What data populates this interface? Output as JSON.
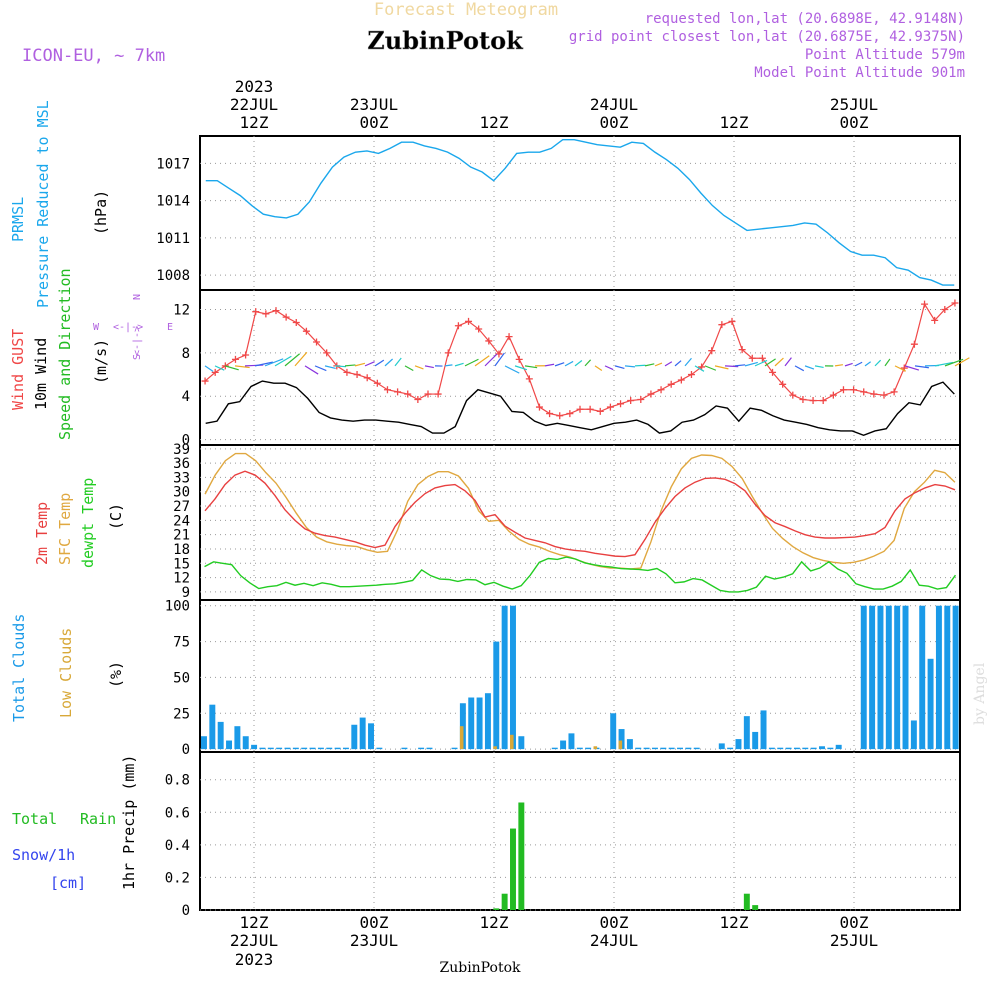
{
  "header": {
    "title_top": "Forecast Meteogram",
    "location": "ZubinPotok",
    "model": "ICON-EU, ~ 7km",
    "requested": "requested lon,lat (20.6898E, 42.9148N)",
    "closest_prefix": "grid point closest lon,lat (20.6875E, 42.9375N)",
    "point_alt": "Point Altitude 579m",
    "model_alt": "Model Point Altitude 901m",
    "footer_location": "ZubinPotok",
    "watermark": "by Angel",
    "compass": {
      "n": "N",
      "e": "E",
      "w": "W",
      "s": "S",
      "arrows": "<-|->"
    }
  },
  "colors": {
    "pressure": "#1aa7ec",
    "gust": "#f04848",
    "wind": "#000000",
    "dir_label": "#22bb22",
    "temp2m": "#e84040",
    "sfc": "#e0a840",
    "dewpt": "#22cc22",
    "total_clouds": "#1a9ae8",
    "low_clouds": "#d8a838",
    "rain": "#22bb22",
    "snow": "#3344ee",
    "title": "#f0d8a0",
    "purple": "#b060e0"
  },
  "time_axis": {
    "top_year": "2023",
    "top_labels": [
      {
        "i": 5,
        "l1": "22JUL",
        "l2": "12Z"
      },
      {
        "i": 17,
        "l1": "23JUL",
        "l2": "00Z"
      },
      {
        "i": 29,
        "l1": "",
        "l2": "12Z"
      },
      {
        "i": 41,
        "l1": "24JUL",
        "l2": "00Z"
      },
      {
        "i": 53,
        "l1": "",
        "l2": "12Z"
      },
      {
        "i": 65,
        "l1": "25JUL",
        "l2": "00Z"
      }
    ],
    "bottom_labels": [
      {
        "i": 5,
        "l1": "12Z",
        "l2": "22JUL",
        "l3": "2023"
      },
      {
        "i": 17,
        "l1": "00Z",
        "l2": "23JUL",
        "l3": ""
      },
      {
        "i": 29,
        "l1": "12Z",
        "l2": "",
        "l3": ""
      },
      {
        "i": 41,
        "l1": "00Z",
        "l2": "24JUL",
        "l3": ""
      },
      {
        "i": 53,
        "l1": "12Z",
        "l2": "",
        "l3": ""
      },
      {
        "i": 65,
        "l1": "00Z",
        "l2": "25JUL",
        "l3": ""
      }
    ]
  },
  "panel_labels": {
    "pressure": [
      "PRMSL",
      "Pressure Reduced to MSL",
      "(hPa)"
    ],
    "wind": [
      "Wind GUST",
      "10m Wind",
      "Speed and Direction",
      "(m/s)"
    ],
    "temp": [
      "2m Temp",
      "SFC Temp",
      "dewpt Temp",
      "(C)"
    ],
    "clouds": [
      "Total Clouds",
      "Low Clouds",
      "(%)"
    ],
    "precip": [
      "Total",
      "Rain",
      "Snow/1h",
      "[cm]",
      "1hr Precip (mm)"
    ]
  },
  "chart_data": [
    {
      "type": "line",
      "title": "PRMSL Pressure Reduced to MSL",
      "ylabel": "(hPa)",
      "y_ticks": [
        1008,
        1011,
        1014,
        1017
      ],
      "ylim": [
        1006.8,
        1019.2
      ],
      "grid": true,
      "series": [
        {
          "name": "PRMSL",
          "values": [
            1015.6,
            1015.6,
            1015.0,
            1014.4,
            1013.6,
            1012.9,
            1012.7,
            1012.6,
            1012.9,
            1013.9,
            1015.4,
            1016.7,
            1017.5,
            1017.9,
            1018.0,
            1017.8,
            1018.2,
            1018.7,
            1018.7,
            1018.4,
            1018.2,
            1017.9,
            1017.4,
            1016.7,
            1016.3,
            1015.6,
            1016.6,
            1017.8,
            1017.9,
            1017.9,
            1018.2,
            1018.9,
            1018.9,
            1018.7,
            1018.5,
            1018.4,
            1018.3,
            1018.7,
            1018.6,
            1017.9,
            1017.3,
            1016.6,
            1015.7,
            1014.6,
            1013.6,
            1012.8,
            1012.2,
            1011.6,
            1011.7,
            1011.8,
            1011.9,
            1012.0,
            1012.2,
            1012.1,
            1011.4,
            1010.6,
            1009.9,
            1009.6,
            1009.6,
            1009.4,
            1008.6,
            1008.4,
            1007.8,
            1007.6,
            1007.2,
            1007.2
          ]
        }
      ]
    },
    {
      "type": "line",
      "title": "Wind GUST / 10m Wind",
      "ylabel": "(m/s)",
      "y_ticks": [
        0,
        4,
        8,
        12
      ],
      "ylim": [
        -0.5,
        13.8
      ],
      "grid": true,
      "series": [
        {
          "name": "Wind GUST",
          "values": [
            5.4,
            6.2,
            6.8,
            7.4,
            7.8,
            11.8,
            11.6,
            11.9,
            11.3,
            10.8,
            10.0,
            9.0,
            8.0,
            6.8,
            6.2,
            6.0,
            5.7,
            5.2,
            4.6,
            4.4,
            4.2,
            3.7,
            4.2,
            4.2,
            8.0,
            10.5,
            10.9,
            10.2,
            9.1,
            7.9,
            9.5,
            7.4,
            5.6,
            3.0,
            2.4,
            2.2,
            2.4,
            2.8,
            2.8,
            2.6,
            3.0,
            3.3,
            3.6,
            3.7,
            4.2,
            4.6,
            5.1,
            5.5,
            6.0,
            6.7,
            8.2,
            10.6,
            10.9,
            8.3,
            7.5,
            7.5,
            6.2,
            5.1,
            4.1,
            3.7,
            3.6,
            3.6,
            4.1,
            4.6,
            4.6,
            4.4,
            4.2,
            4.1,
            4.4,
            6.6,
            8.8,
            12.5,
            11.0,
            12.0,
            12.6
          ]
        },
        {
          "name": "10m Wind",
          "values": [
            1.5,
            1.7,
            3.3,
            3.5,
            4.9,
            5.4,
            5.2,
            5.2,
            4.8,
            3.8,
            2.5,
            2.0,
            1.8,
            1.7,
            1.8,
            1.8,
            1.7,
            1.6,
            1.4,
            1.2,
            0.6,
            0.6,
            1.2,
            3.6,
            4.6,
            4.3,
            4.0,
            2.6,
            2.5,
            1.7,
            1.3,
            1.5,
            1.3,
            1.1,
            0.9,
            1.2,
            1.5,
            1.6,
            1.8,
            1.4,
            0.6,
            0.8,
            1.6,
            1.8,
            2.3,
            3.1,
            2.9,
            1.7,
            2.9,
            2.7,
            2.2,
            1.8,
            1.6,
            1.4,
            1.1,
            0.9,
            0.8,
            0.8,
            0.4,
            0.8,
            1.0,
            2.4,
            3.4,
            3.2,
            4.9,
            5.3,
            4.2
          ]
        }
      ]
    },
    {
      "type": "line",
      "title": "2m Temp / SFC Temp / dewpt Temp",
      "ylabel": "(C)",
      "y_ticks": [
        9,
        12,
        15,
        18,
        21,
        24,
        27,
        30,
        33,
        36,
        39
      ],
      "ylim": [
        7.3,
        39.8
      ],
      "grid": true,
      "series": [
        {
          "name": "2m Temp",
          "values": [
            26.0,
            28.5,
            31.5,
            33.5,
            34.3,
            33.5,
            31.8,
            29.2,
            26.2,
            24.0,
            22.2,
            21.3,
            20.8,
            20.5,
            20.0,
            19.5,
            18.8,
            18.3,
            18.8,
            22.7,
            25.5,
            27.8,
            29.6,
            30.8,
            31.3,
            31.5,
            30.2,
            28.2,
            24.7,
            25.2,
            22.8,
            21.5,
            20.3,
            19.8,
            19.3,
            18.5,
            18.0,
            17.7,
            17.5,
            17.1,
            16.8,
            16.5,
            16.4,
            16.8,
            20.0,
            23.6,
            26.5,
            29.0,
            30.8,
            32.0,
            32.8,
            32.9,
            32.6,
            31.7,
            30.2,
            27.4,
            25.0,
            23.5,
            22.7,
            21.8,
            21.0,
            20.5,
            20.3,
            20.3,
            20.4,
            20.5,
            20.8,
            21.2,
            22.5,
            26.0,
            28.5,
            29.8,
            30.8,
            31.5,
            31.2,
            30.4
          ]
        },
        {
          "name": "SFC Temp",
          "values": [
            29.5,
            33.5,
            36.5,
            38.0,
            38.0,
            36.5,
            34.0,
            31.8,
            28.8,
            25.5,
            22.5,
            20.5,
            19.5,
            19.0,
            18.7,
            18.5,
            17.8,
            17.3,
            17.5,
            22.0,
            28.0,
            31.5,
            33.2,
            34.2,
            34.2,
            33.3,
            30.7,
            26.0,
            23.8,
            24.0,
            21.7,
            20.0,
            19.0,
            18.4,
            17.5,
            16.8,
            16.3,
            15.5,
            14.8,
            14.3,
            14.0,
            14.0,
            13.8,
            14.0,
            19.5,
            26.0,
            31.0,
            34.8,
            37.0,
            37.7,
            37.6,
            37.0,
            35.3,
            32.8,
            29.0,
            25.5,
            22.3,
            20.2,
            18.5,
            17.2,
            16.2,
            15.6,
            15.2,
            15.0,
            15.2,
            15.7,
            16.5,
            17.5,
            19.8,
            26.5,
            30.0,
            32.0,
            34.5,
            34.0,
            32.0
          ]
        },
        {
          "name": "dewpt Temp",
          "values": [
            14.3,
            15.3,
            15.0,
            14.7,
            12.4,
            10.9,
            9.7,
            10.1,
            10.3,
            11.0,
            10.4,
            10.8,
            10.3,
            10.9,
            10.6,
            10.1,
            10.1,
            10.2,
            10.3,
            10.4,
            10.6,
            10.7,
            11.0,
            11.4,
            13.6,
            12.4,
            11.7,
            11.6,
            11.2,
            11.6,
            11.5,
            10.5,
            11.0,
            10.2,
            9.6,
            10.3,
            12.5,
            15.2,
            16.0,
            15.8,
            16.3,
            15.9,
            15.1,
            14.7,
            14.4,
            14.2,
            13.9,
            13.8,
            13.7,
            13.5,
            13.9,
            12.8,
            10.9,
            11.1,
            11.8,
            11.5,
            10.4,
            9.3,
            9.0,
            9.0,
            9.3,
            10.0,
            12.3,
            11.7,
            12.1,
            12.8,
            15.3,
            13.4,
            14.0,
            15.3,
            13.8,
            12.9,
            10.7,
            10.1,
            9.6,
            9.6,
            10.2,
            11.2,
            13.6,
            10.4,
            10.2,
            9.6,
            9.9,
            12.5
          ]
        }
      ]
    },
    {
      "type": "bar",
      "title": "Total Clouds / Low Clouds",
      "ylabel": "(%)",
      "y_ticks": [
        0,
        25,
        50,
        75,
        100
      ],
      "ylim": [
        -2,
        104
      ],
      "grid": true,
      "series": [
        {
          "name": "Total Clouds",
          "values": [
            9,
            31,
            19,
            6,
            16,
            9,
            3,
            1,
            1,
            1,
            1,
            1,
            1,
            1,
            1,
            1,
            1,
            1,
            17,
            22,
            18,
            1,
            0,
            0,
            1,
            0,
            1,
            1,
            0,
            0,
            1,
            32,
            36,
            36,
            39,
            75,
            100,
            100,
            9,
            0,
            0,
            0,
            1,
            6,
            11,
            1,
            1,
            1,
            0,
            25,
            14,
            7,
            1,
            1,
            1,
            1,
            1,
            1,
            1,
            1,
            0,
            0,
            4,
            1,
            7,
            23,
            12,
            27,
            1,
            1,
            1,
            1,
            1,
            1,
            2,
            1,
            3,
            0,
            0,
            100,
            100,
            100,
            100,
            100,
            100,
            20,
            100,
            63,
            100,
            100,
            100
          ]
        },
        {
          "name": "Low Clouds",
          "values": [
            0,
            0,
            0,
            0,
            0,
            0,
            0,
            0,
            0,
            0,
            0,
            0,
            0,
            0,
            0,
            0,
            0,
            0,
            0,
            0,
            0,
            0,
            0,
            0,
            0,
            0,
            0,
            0,
            0,
            0,
            0,
            16,
            0,
            0,
            0,
            2,
            0,
            10,
            0,
            0,
            0,
            0,
            0,
            0,
            0,
            0,
            0,
            2,
            0,
            0,
            6,
            0,
            0,
            0,
            0,
            0,
            0,
            0,
            0,
            0,
            0,
            0,
            0,
            0,
            0,
            0,
            0,
            0,
            0,
            0,
            0,
            0,
            0,
            0,
            0,
            0,
            0,
            0,
            0,
            0,
            0,
            0,
            0,
            0,
            0,
            0,
            0,
            0,
            0,
            0,
            0
          ]
        }
      ]
    },
    {
      "type": "bar",
      "title": "1hr Precip",
      "ylabel": "1hr Precip (mm)",
      "y_ticks": [
        0,
        0.2,
        0.4,
        0.6,
        0.8
      ],
      "ylim": [
        0,
        0.97
      ],
      "grid": true,
      "series": [
        {
          "name": "Total Rain",
          "values": [
            0.01,
            0.1,
            0.5,
            0.66,
            0.1,
            0.03
          ]
        },
        {
          "name": "Snow/1h",
          "values": [
            0,
            0,
            0,
            0,
            0,
            0
          ]
        }
      ],
      "x_index": [
        35,
        36,
        37,
        38,
        65,
        66
      ]
    }
  ]
}
